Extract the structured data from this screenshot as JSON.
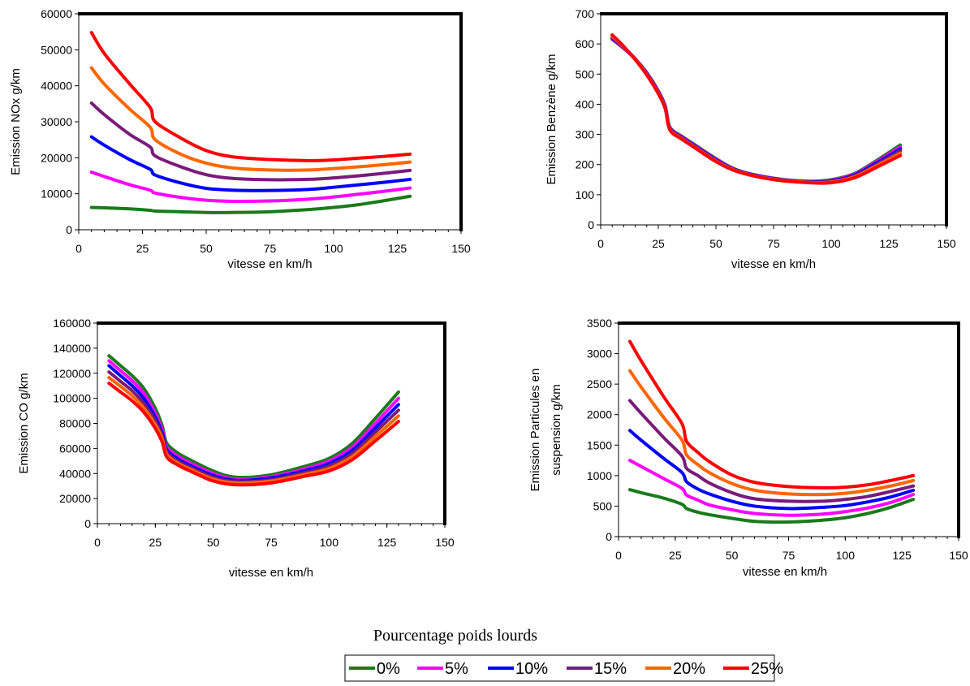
{
  "legend": {
    "title": "Pourcentage poids lourds",
    "entries": [
      {
        "name": "0%",
        "color": "#1a7a1a"
      },
      {
        "name": "5%",
        "color": "#ff00ff"
      },
      {
        "name": "10%",
        "color": "#0000ff"
      },
      {
        "name": "15%",
        "color": "#7a1a7a"
      },
      {
        "name": "20%",
        "color": "#ff6600"
      },
      {
        "name": "25%",
        "color": "#ff0000"
      }
    ]
  },
  "chart_data": [
    {
      "type": "line",
      "title": "",
      "xlabel": "vitesse en km/h",
      "ylabel": "Emission NOx g/km",
      "xlim": [
        0,
        150
      ],
      "ylim": [
        0,
        60000
      ],
      "xticks": [
        "0",
        "25",
        "50",
        "75",
        "100",
        "125",
        "150"
      ],
      "yticks": [
        "0",
        "10000",
        "20000",
        "30000",
        "40000",
        "50000",
        "60000"
      ],
      "x": [
        5,
        10,
        20,
        28,
        30,
        40,
        50,
        60,
        75,
        90,
        100,
        110,
        120,
        130
      ],
      "series": [
        {
          "name": "0%",
          "values": [
            6200,
            6100,
            5800,
            5400,
            5200,
            5000,
            4800,
            4800,
            5000,
            5600,
            6200,
            7000,
            8100,
            9300
          ]
        },
        {
          "name": "5%",
          "values": [
            16000,
            14800,
            12500,
            11000,
            10200,
            9000,
            8200,
            7900,
            8000,
            8500,
            9100,
            9900,
            10700,
            11600
          ]
        },
        {
          "name": "10%",
          "values": [
            25800,
            23500,
            19500,
            16800,
            15200,
            13000,
            11500,
            11000,
            10900,
            11200,
            11800,
            12500,
            13200,
            14000
          ]
        },
        {
          "name": "15%",
          "values": [
            35200,
            32000,
            26500,
            23000,
            20500,
            17500,
            15300,
            14300,
            13900,
            14000,
            14400,
            15000,
            15700,
            16500
          ]
        },
        {
          "name": "20%",
          "values": [
            45000,
            40500,
            33500,
            28500,
            25000,
            21000,
            18500,
            17200,
            16600,
            16600,
            17000,
            17500,
            18100,
            18800
          ]
        },
        {
          "name": "25%",
          "values": [
            54800,
            49000,
            40500,
            34000,
            30000,
            25500,
            22000,
            20300,
            19500,
            19200,
            19400,
            19900,
            20400,
            21000
          ]
        }
      ]
    },
    {
      "type": "line",
      "title": "",
      "xlabel": "vitesse en km/h",
      "ylabel": "Emission Benzène g/km",
      "xlim": [
        0,
        150
      ],
      "ylim": [
        0,
        700
      ],
      "xticks": [
        "0",
        "25",
        "50",
        "75",
        "100",
        "125",
        "150"
      ],
      "yticks": [
        "0",
        "100",
        "200",
        "300",
        "400",
        "500",
        "600",
        "700"
      ],
      "x": [
        5,
        10,
        15,
        20,
        25,
        28,
        30,
        35,
        40,
        50,
        60,
        75,
        90,
        100,
        110,
        120,
        130
      ],
      "series": [
        {
          "name": "0%",
          "values": [
            615,
            585,
            550,
            505,
            445,
            395,
            325,
            295,
            270,
            220,
            180,
            155,
            145,
            150,
            170,
            215,
            265
          ]
        },
        {
          "name": "5%",
          "values": [
            617,
            586,
            550,
            504,
            443,
            393,
            323,
            293,
            268,
            218,
            179,
            154,
            144,
            148,
            168,
            211,
            258
          ]
        },
        {
          "name": "10%",
          "values": [
            620,
            588,
            551,
            503,
            441,
            391,
            321,
            291,
            266,
            216,
            178,
            153,
            143,
            146,
            165,
            207,
            252
          ]
        },
        {
          "name": "15%",
          "values": [
            623,
            589,
            550,
            501,
            439,
            389,
            319,
            289,
            264,
            214,
            177,
            152,
            142,
            144,
            162,
            202,
            245
          ]
        },
        {
          "name": "20%",
          "values": [
            626,
            590,
            549,
            499,
            437,
            387,
            317,
            287,
            262,
            212,
            176,
            151,
            141,
            142,
            159,
            197,
            238
          ]
        },
        {
          "name": "25%",
          "values": [
            630,
            592,
            548,
            497,
            435,
            385,
            315,
            285,
            260,
            210,
            175,
            150,
            140,
            140,
            156,
            192,
            230
          ]
        }
      ]
    },
    {
      "type": "line",
      "title": "",
      "xlabel": "vitesse en km/h",
      "ylabel": "Emission CO g/km",
      "xlim": [
        0,
        150
      ],
      "ylim": [
        0,
        160000
      ],
      "xticks": [
        "0",
        "25",
        "50",
        "75",
        "100",
        "125",
        "150"
      ],
      "yticks": [
        "0",
        "20000",
        "40000",
        "60000",
        "80000",
        "100000",
        "120000",
        "140000",
        "160000"
      ],
      "x": [
        5,
        10,
        15,
        20,
        25,
        28,
        30,
        35,
        40,
        50,
        60,
        75,
        90,
        100,
        110,
        120,
        130
      ],
      "series": [
        {
          "name": "0%",
          "values": [
            134000,
            126000,
            118000,
            108000,
            92000,
            78000,
            64000,
            56000,
            51000,
            42000,
            37000,
            39000,
            46000,
            52000,
            64000,
            84000,
            105000
          ]
        },
        {
          "name": "5%",
          "values": [
            130000,
            122000,
            114000,
            104000,
            88000,
            75000,
            61000,
            53500,
            48500,
            40000,
            35500,
            37500,
            44000,
            50000,
            61000,
            80000,
            100000
          ]
        },
        {
          "name": "10%",
          "values": [
            126000,
            118000,
            110000,
            100000,
            85000,
            72500,
            59000,
            51500,
            46500,
            38500,
            34500,
            36500,
            42500,
            48000,
            58500,
            76500,
            95000
          ]
        },
        {
          "name": "15%",
          "values": [
            121000,
            113500,
            106000,
            96000,
            82000,
            70000,
            57000,
            49500,
            45000,
            37000,
            33500,
            35000,
            41000,
            46000,
            56000,
            73000,
            90500
          ]
        },
        {
          "name": "20%",
          "values": [
            116500,
            109500,
            102000,
            92500,
            79000,
            67500,
            55000,
            48000,
            43500,
            35500,
            32500,
            34000,
            39500,
            44000,
            53500,
            69500,
            86000
          ]
        },
        {
          "name": "25%",
          "values": [
            112000,
            105000,
            98000,
            89000,
            76000,
            65000,
            53000,
            46500,
            42000,
            34000,
            31000,
            32500,
            38000,
            42000,
            51000,
            66000,
            81500
          ]
        }
      ]
    },
    {
      "type": "line",
      "title": "",
      "xlabel": "vitesse en km/h",
      "ylabel": "Emission Particules en suspension g/km",
      "xlim": [
        0,
        150
      ],
      "ylim": [
        0,
        3500
      ],
      "xticks": [
        "0",
        "25",
        "50",
        "75",
        "100",
        "125",
        "150"
      ],
      "yticks": [
        "0",
        "500",
        "1000",
        "1500",
        "2000",
        "2500",
        "3000",
        "3500"
      ],
      "x": [
        5,
        10,
        20,
        28,
        30,
        35,
        40,
        50,
        60,
        75,
        90,
        100,
        110,
        120,
        130
      ],
      "series": [
        {
          "name": "0%",
          "values": [
            770,
            720,
            630,
            530,
            460,
            400,
            360,
            300,
            250,
            240,
            270,
            310,
            380,
            480,
            610
          ]
        },
        {
          "name": "5%",
          "values": [
            1250,
            1150,
            950,
            790,
            680,
            600,
            520,
            440,
            380,
            350,
            370,
            410,
            470,
            560,
            690
          ]
        },
        {
          "name": "10%",
          "values": [
            1740,
            1580,
            1280,
            1050,
            900,
            780,
            700,
            580,
            500,
            460,
            480,
            510,
            570,
            650,
            760
          ]
        },
        {
          "name": "15%",
          "values": [
            2230,
            2020,
            1620,
            1320,
            1120,
            1000,
            880,
            720,
            620,
            580,
            580,
            610,
            660,
            740,
            830
          ]
        },
        {
          "name": "20%",
          "values": [
            2720,
            2450,
            1950,
            1580,
            1340,
            1180,
            1050,
            870,
            760,
            700,
            690,
            710,
            760,
            830,
            920
          ]
        },
        {
          "name": "25%",
          "values": [
            3200,
            2880,
            2290,
            1850,
            1560,
            1380,
            1230,
            1010,
            890,
            820,
            800,
            810,
            850,
            920,
            1000
          ]
        }
      ]
    }
  ]
}
